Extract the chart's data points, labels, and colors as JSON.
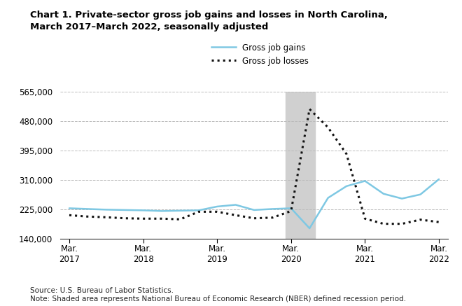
{
  "title_line1": "Chart 1. Private-sector gross job gains and losses in North Carolina,",
  "title_line2": "March 2017–March 2022, seasonally adjusted",
  "source_note_line1": "Source: U.S. Bureau of Labor Statistics.",
  "source_note_line2": "Note: Shaded area represents National Bureau of Economic Research (NBER) defined recession period.",
  "legend_gains": "Gross job gains",
  "legend_losses": "Gross job losses",
  "gains_color": "#7ec8e3",
  "losses_color": "#111111",
  "recession_color": "#d0d0d0",
  "ylim": [
    140000,
    565000
  ],
  "yticks": [
    140000,
    225000,
    310000,
    395000,
    480000,
    565000
  ],
  "ytick_labels": [
    "140,000",
    "225,000",
    "310,000",
    "395,000",
    "480,000",
    "565,000"
  ],
  "xtick_positions": [
    0,
    4,
    8,
    12,
    16,
    20
  ],
  "xtick_labels_line1": [
    "Mar.",
    "Mar.",
    "Mar.",
    "Mar.",
    "Mar.",
    "Mar."
  ],
  "xtick_labels_line2": [
    "2017",
    "2018",
    "2019",
    "2020",
    "2021",
    "2022"
  ],
  "gains_data": [
    228000,
    226000,
    224000,
    223000,
    222000,
    220000,
    221000,
    222000,
    233000,
    238000,
    223000,
    226000,
    228000,
    170000,
    258000,
    292000,
    307000,
    270000,
    256000,
    268000,
    312000
  ],
  "losses_data": [
    208000,
    204000,
    202000,
    199000,
    198000,
    198000,
    196000,
    218000,
    218000,
    208000,
    199000,
    201000,
    220000,
    515000,
    462000,
    385000,
    198000,
    183000,
    183000,
    195000,
    188000
  ],
  "recession_xstart": 11.7,
  "recession_xend": 13.3
}
